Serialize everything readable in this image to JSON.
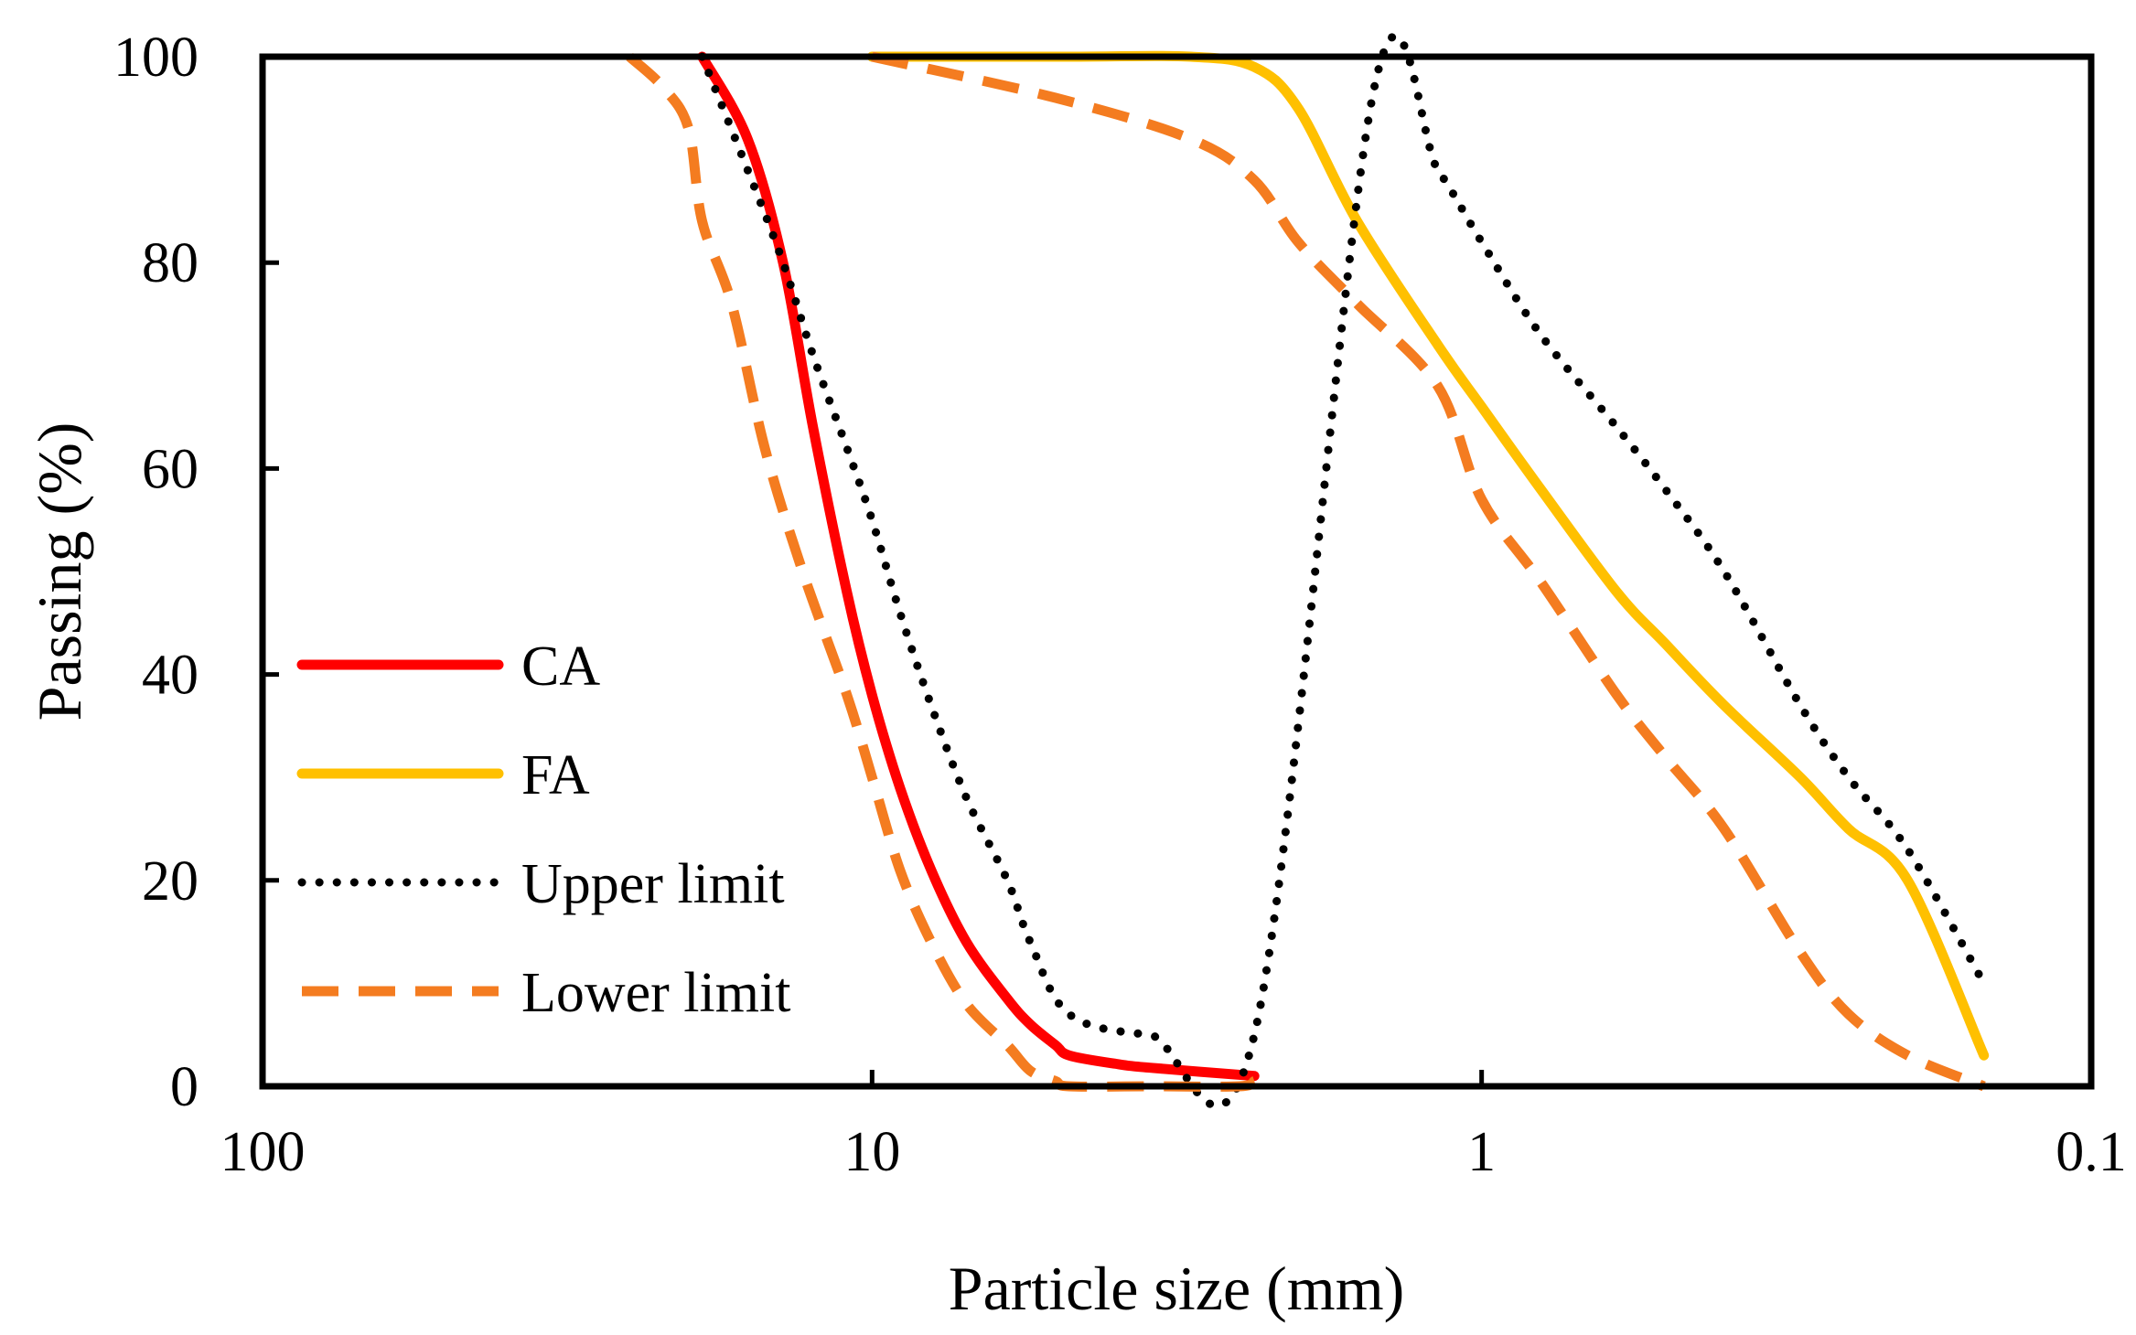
{
  "chart_data": {
    "type": "line",
    "title": "",
    "xlabel": "Particle size (mm)",
    "ylabel": "Passing (%)",
    "x_scale": "log",
    "x_reversed": true,
    "xlim": [
      100,
      0.1
    ],
    "ylim": [
      0,
      100
    ],
    "x_ticks": [
      100,
      10,
      1,
      0.1
    ],
    "x_tick_labels": [
      "100",
      "10",
      "1",
      "0.1"
    ],
    "y_ticks": [
      0,
      20,
      40,
      60,
      80,
      100
    ],
    "y_tick_labels": [
      "0",
      "20",
      "40",
      "60",
      "80",
      "100"
    ],
    "grid": false,
    "legend": {
      "position": "left-bottom"
    },
    "series": [
      {
        "name": "CA",
        "color": "#ff0000",
        "style": "solid",
        "x": [
          19,
          16,
          14,
          12.5,
          11,
          10,
          9,
          8,
          7,
          6,
          5.5,
          5,
          4.75,
          4,
          3.5,
          2.36
        ],
        "y": [
          100,
          92,
          80,
          64,
          48,
          38,
          29,
          21,
          14,
          8.5,
          6,
          4,
          3,
          2.2,
          1.8,
          1
        ]
      },
      {
        "name": "FA",
        "color": "#ffc000",
        "style": "solid",
        "x": [
          10,
          4.75,
          3,
          2.36,
          2,
          1.6,
          1.18,
          1,
          0.8,
          0.6,
          0.5,
          0.4,
          0.3,
          0.25,
          0.2,
          0.15
        ],
        "y": [
          100,
          100,
          100,
          99,
          95,
          84,
          72,
          66,
          58,
          48,
          43,
          37,
          30,
          25,
          20,
          3
        ]
      },
      {
        "name": "Upper limit",
        "color": "#000000",
        "style": "dotted",
        "x": [
          19,
          16,
          14,
          12.5,
          11,
          10,
          9,
          8,
          7,
          6,
          5.5,
          4.75,
          3.5,
          2.36,
          1.5,
          1.18,
          1,
          0.8,
          0.6,
          0.5,
          0.4,
          0.3,
          0.25,
          0.2,
          0.15
        ],
        "y": [
          100,
          89,
          80,
          71,
          62,
          55,
          46,
          37,
          28,
          20,
          14,
          7,
          5,
          5,
          97,
          89,
          82,
          73,
          64,
          58,
          50,
          37,
          30,
          23,
          10
        ]
      },
      {
        "name": "Lower limit",
        "color": "#f47c20",
        "style": "dashed",
        "x": [
          25,
          22,
          20,
          19,
          17,
          15,
          13,
          11,
          10,
          9,
          8,
          7,
          6,
          5.5,
          5,
          4.75,
          3.5,
          2.5,
          2.36,
          10,
          5,
          3,
          2.36,
          2,
          1.6,
          1.18,
          1,
          0.8,
          0.6,
          0.5,
          0.4,
          0.3,
          0.25,
          0.2,
          0.15
        ],
        "y": [
          100,
          97,
          93,
          84,
          76,
          62,
          50,
          38,
          30,
          21,
          14,
          8,
          4,
          1.5,
          0.5,
          0,
          0,
          0,
          0.5,
          100,
          96,
          92,
          88,
          82,
          76,
          68,
          57,
          49,
          38,
          32,
          25,
          13,
          7,
          3,
          0
        ]
      }
    ]
  }
}
